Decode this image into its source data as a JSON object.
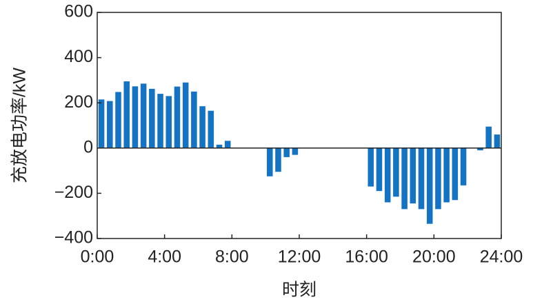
{
  "chart_data": {
    "type": "bar",
    "x_label": "时刻",
    "y_label": "充放电功率/kW",
    "color": "#1473c3",
    "x": [
      0.25,
      0.75,
      1.25,
      1.75,
      2.25,
      2.75,
      3.25,
      3.75,
      4.25,
      4.75,
      5.25,
      5.75,
      6.25,
      6.75,
      7.25,
      7.75,
      8.25,
      8.75,
      9.25,
      9.75,
      10.25,
      10.75,
      11.25,
      11.75,
      12.25,
      12.75,
      13.25,
      13.75,
      14.25,
      14.75,
      15.25,
      15.75,
      16.25,
      16.75,
      17.25,
      17.75,
      18.25,
      18.75,
      19.25,
      19.75,
      20.25,
      20.75,
      21.25,
      21.75,
      22.25,
      22.75,
      23.25,
      23.75
    ],
    "values": [
      215,
      208,
      248,
      295,
      273,
      285,
      262,
      240,
      230,
      272,
      290,
      250,
      185,
      165,
      15,
      32,
      2,
      1,
      1,
      1,
      -125,
      -105,
      -40,
      -30,
      1,
      1,
      1,
      1,
      1,
      1,
      1,
      1,
      -170,
      -190,
      -240,
      -215,
      -270,
      -245,
      -270,
      -335,
      -270,
      -240,
      -230,
      -165,
      0,
      -10,
      95,
      60
    ],
    "xlim": [
      0,
      24
    ],
    "xticks": [
      {
        "value": 0,
        "label": "0:00"
      },
      {
        "value": 4,
        "label": "4:00"
      },
      {
        "value": 8,
        "label": "8:00"
      },
      {
        "value": 12,
        "label": "12:00"
      },
      {
        "value": 16,
        "label": "16:00"
      },
      {
        "value": 20,
        "label": "20:00"
      },
      {
        "value": 24,
        "label": "24:00"
      }
    ],
    "ylim": [
      -400,
      600
    ],
    "yticks": [
      {
        "value": -400,
        "label": "−400"
      },
      {
        "value": -200,
        "label": "−200"
      },
      0,
      200,
      400,
      600
    ]
  }
}
